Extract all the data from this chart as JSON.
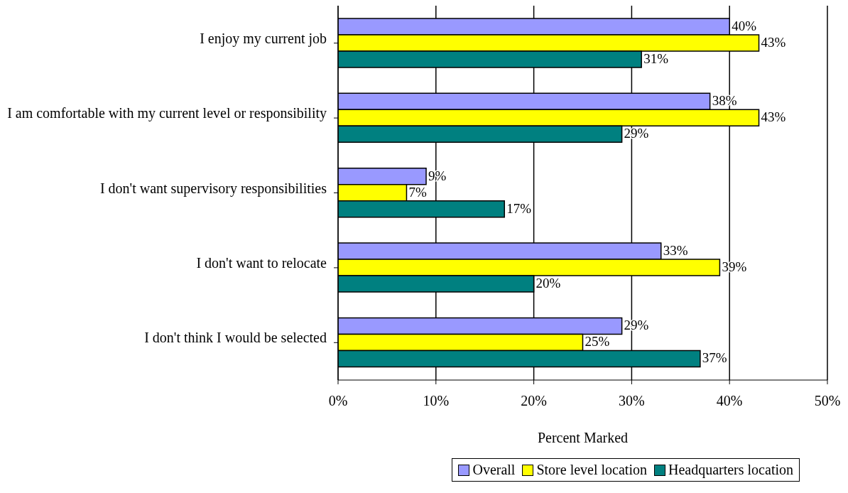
{
  "chart_data": {
    "type": "bar",
    "orientation": "horizontal",
    "xlabel": "Percent Marked",
    "categories": [
      "I enjoy my current job",
      "I am comfortable with my current level or responsibility",
      "I don't want supervisory responsibilities",
      "I don't want to relocate",
      "I don't think I would be selected"
    ],
    "series": [
      {
        "name": "Overall",
        "color": "#9999ff",
        "values": [
          40,
          38,
          9,
          33,
          29
        ],
        "value_labels": [
          "40%",
          "38%",
          "9%",
          "33%",
          "29%"
        ]
      },
      {
        "name": "Store level location",
        "color": "#ffff00",
        "values": [
          43,
          43,
          7,
          39,
          25
        ],
        "value_labels": [
          "43%",
          "43%",
          "7%",
          "39%",
          "25%"
        ]
      },
      {
        "name": "Headquarters location",
        "color": "#008080",
        "values": [
          31,
          29,
          17,
          20,
          37
        ],
        "value_labels": [
          "31%",
          "29%",
          "17%",
          "20%",
          "37%"
        ]
      }
    ],
    "xlim": [
      0,
      50
    ],
    "xticks": [
      {
        "value": 0,
        "label": "0%"
      },
      {
        "value": 10,
        "label": "10%"
      },
      {
        "value": 20,
        "label": "20%"
      },
      {
        "value": 30,
        "label": "30%"
      },
      {
        "value": 40,
        "label": "40%"
      },
      {
        "value": 50,
        "label": "50%"
      }
    ],
    "grid": "x",
    "legend": "bottom"
  }
}
